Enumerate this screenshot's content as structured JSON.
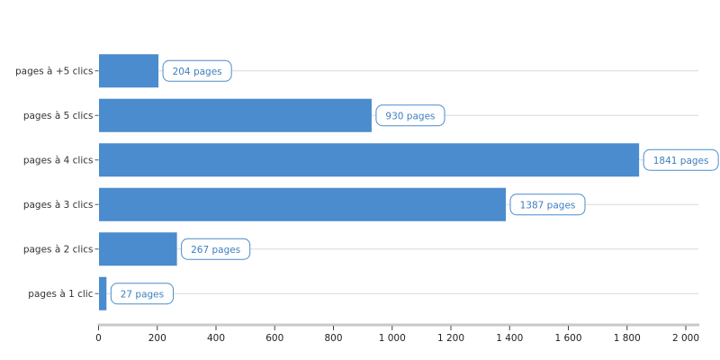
{
  "chart_data": {
    "type": "bar",
    "orientation": "horizontal",
    "categories": [
      "pages à +5 clics",
      "pages à 5 clics",
      "pages à 4 clics",
      "pages à 3 clics",
      "pages à 2 clics",
      "pages à 1 clic"
    ],
    "values": [
      204,
      930,
      1841,
      1387,
      267,
      27
    ],
    "data_labels": [
      "204 pages",
      "930 pages",
      "1841 pages",
      "1387 pages",
      "267 pages",
      "27 pages"
    ],
    "x_ticks": [
      0,
      200,
      400,
      600,
      800,
      1000,
      1200,
      1400,
      1600,
      1800,
      2000
    ],
    "x_tick_labels": [
      "0",
      "200",
      "400",
      "600",
      "800",
      "1 000",
      "1 200",
      "1 400",
      "1 600",
      "1 800",
      "2 000"
    ],
    "xlim": [
      0,
      2000
    ],
    "title": "",
    "xlabel": "",
    "ylabel": "",
    "grid": true,
    "colors": {
      "bar": "#4a8ccd",
      "label_text": "#3f7fbf",
      "label_border": "#4a8ccd",
      "grid": "#d9d9d9",
      "axis": "#c8c8c8"
    }
  }
}
